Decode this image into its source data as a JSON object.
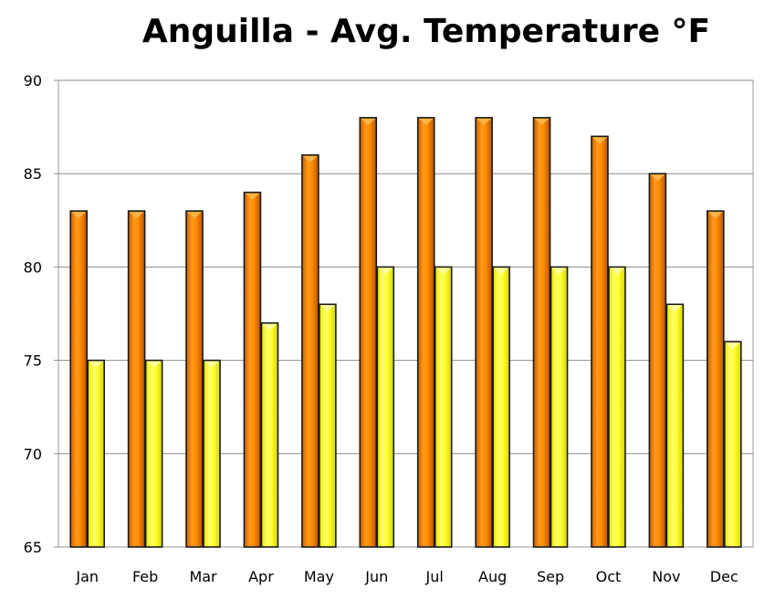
{
  "chart_data": {
    "type": "bar",
    "title": "Anguilla - Avg. Temperature °F",
    "xlabel": "",
    "ylabel": "",
    "categories": [
      "Jan",
      "Feb",
      "Mar",
      "Apr",
      "May",
      "Jun",
      "Jul",
      "Aug",
      "Sep",
      "Oct",
      "Nov",
      "Dec"
    ],
    "series": [
      {
        "values": [
          83,
          83,
          83,
          84,
          86,
          88,
          88,
          88,
          88,
          87,
          85,
          83
        ],
        "color": "#f08a00"
      },
      {
        "values": [
          75,
          75,
          75,
          77,
          78,
          80,
          80,
          80,
          80,
          80,
          78,
          76
        ],
        "color": "#ffff33"
      }
    ],
    "ylim": [
      65,
      90
    ],
    "yticks": [
      "65",
      "70",
      "75",
      "80",
      "85",
      "90"
    ],
    "grid": true,
    "legend": "none"
  }
}
